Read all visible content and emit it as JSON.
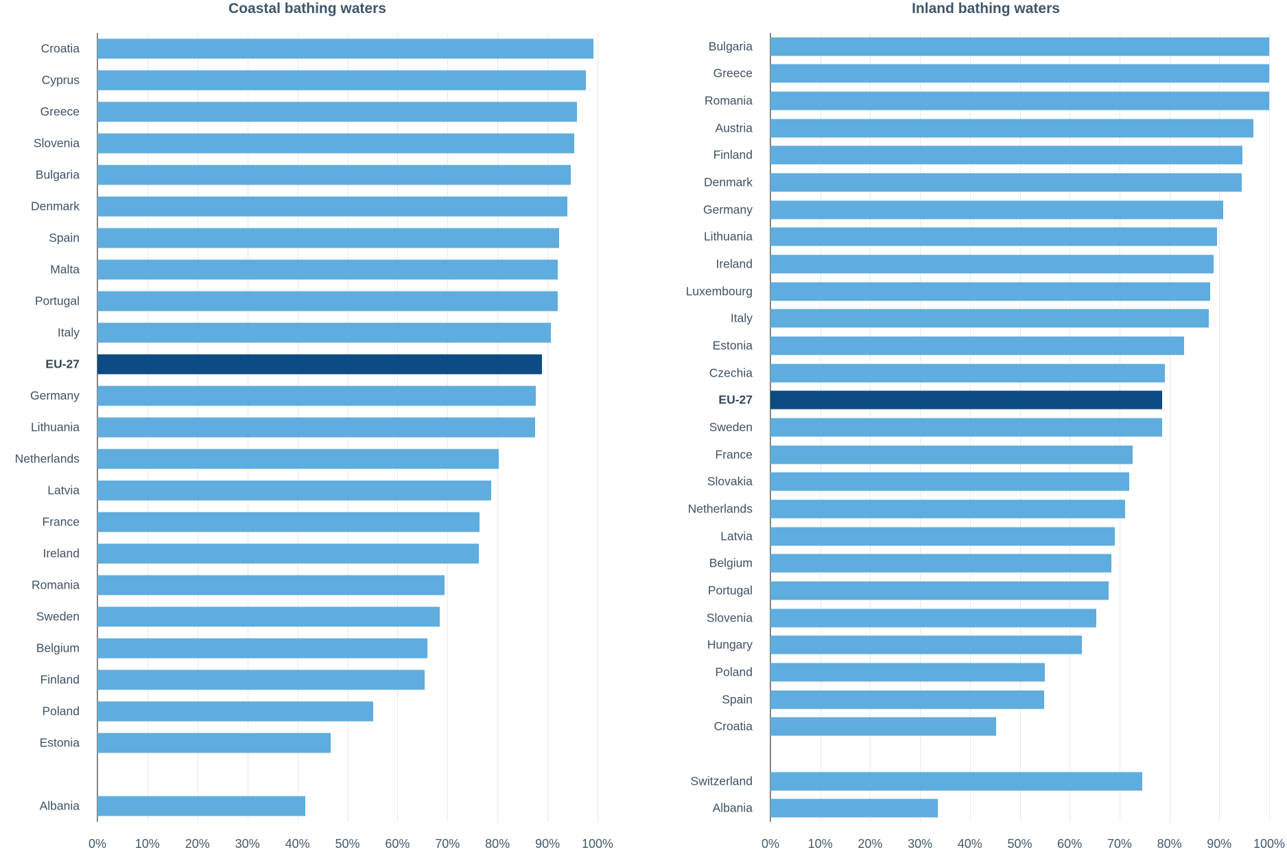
{
  "colors": {
    "bar": "#5FACDF",
    "bar_highlight": "#0C4C82",
    "grid": "#E8E8E8",
    "axis_line": "#848484",
    "title": "#3D566B",
    "label": "#3E5266",
    "label_highlight": "#33475B",
    "tick": "#44586C"
  },
  "chart_data": [
    {
      "type": "bar",
      "orientation": "horizontal",
      "title": "Coastal bathing waters",
      "unit": "%",
      "xlim": [
        0,
        100
      ],
      "grid": true,
      "highlight_category": "EU-27",
      "xticks": [
        "0%",
        "10%",
        "20%",
        "30%",
        "40%",
        "50%",
        "60%",
        "70%",
        "80%",
        "90%",
        "100%"
      ],
      "categories": [
        "Croatia",
        "Cyprus",
        "Greece",
        "Slovenia",
        "Bulgaria",
        "Denmark",
        "Spain",
        "Malta",
        "Portugal",
        "Italy",
        "EU-27",
        "Germany",
        "Lithuania",
        "Netherlands",
        "Latvia",
        "France",
        "Ireland",
        "Romania",
        "Sweden",
        "Belgium",
        "Finland",
        "Poland",
        "Estonia",
        "",
        "Albania"
      ],
      "values": [
        99.2,
        97.7,
        95.9,
        95.3,
        94.7,
        94.0,
        92.3,
        92.1,
        92.0,
        90.7,
        88.9,
        87.7,
        87.5,
        80.3,
        78.8,
        76.4,
        76.3,
        69.4,
        68.4,
        66.0,
        65.4,
        55.2,
        46.7,
        null,
        41.6
      ]
    },
    {
      "type": "bar",
      "orientation": "horizontal",
      "title": "Inland bathing waters",
      "unit": "%",
      "xlim": [
        0,
        100
      ],
      "grid": true,
      "highlight_category": "EU-27",
      "xticks": [
        "0%",
        "10%",
        "20%",
        "30%",
        "40%",
        "50%",
        "60%",
        "70%",
        "80%",
        "90%",
        "100%"
      ],
      "categories": [
        "Bulgaria",
        "Greece",
        "Romania",
        "Austria",
        "Finland",
        "Denmark",
        "Germany",
        "Lithuania",
        "Ireland",
        "Luxembourg",
        "Italy",
        "Estonia",
        "Czechia",
        "EU-27",
        "Sweden",
        "France",
        "Slovakia",
        "Netherlands",
        "Latvia",
        "Belgium",
        "Portugal",
        "Slovenia",
        "Hungary",
        "Poland",
        "Spain",
        "Croatia",
        "",
        "Switzerland",
        "Albania"
      ],
      "values": [
        100,
        100,
        100,
        96.9,
        94.7,
        94.5,
        90.8,
        89.5,
        88.9,
        88.2,
        87.9,
        82.9,
        79.1,
        78.6,
        78.5,
        72.6,
        71.9,
        71.1,
        69.1,
        68.4,
        67.8,
        65.4,
        62.5,
        55.0,
        54.9,
        45.2,
        null,
        74.5,
        33.5
      ]
    }
  ]
}
